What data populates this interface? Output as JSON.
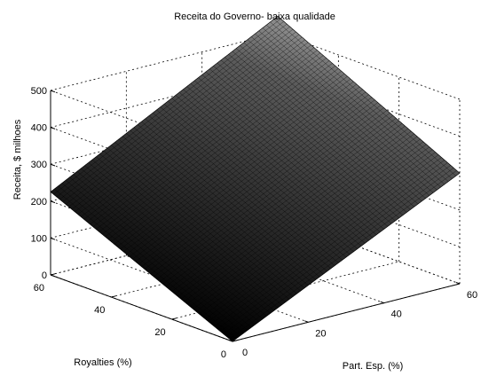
{
  "chart_data": {
    "type": "surface",
    "title": "Receita do Governo- baixa qualidade",
    "xlabel": "Part. Esp. (%)",
    "ylabel": "Royalties (%)",
    "zlabel": "Receita, $ milhoes",
    "x_ticks": [
      "0",
      "20",
      "40",
      "60"
    ],
    "y_ticks": [
      "0",
      "20",
      "40",
      "60"
    ],
    "z_ticks": [
      "0",
      "100",
      "200",
      "300",
      "400",
      "500"
    ],
    "xlim": [
      0,
      60
    ],
    "ylim": [
      0,
      60
    ],
    "zlim": [
      0,
      500
    ],
    "corners": [
      {
        "x": 0,
        "y": 0,
        "z": 0
      },
      {
        "x": 60,
        "y": 0,
        "z": 300
      },
      {
        "x": 0,
        "y": 60,
        "z": 225
      },
      {
        "x": 60,
        "y": 60,
        "z": 545
      }
    ],
    "colormap": "gray",
    "grid": true
  }
}
